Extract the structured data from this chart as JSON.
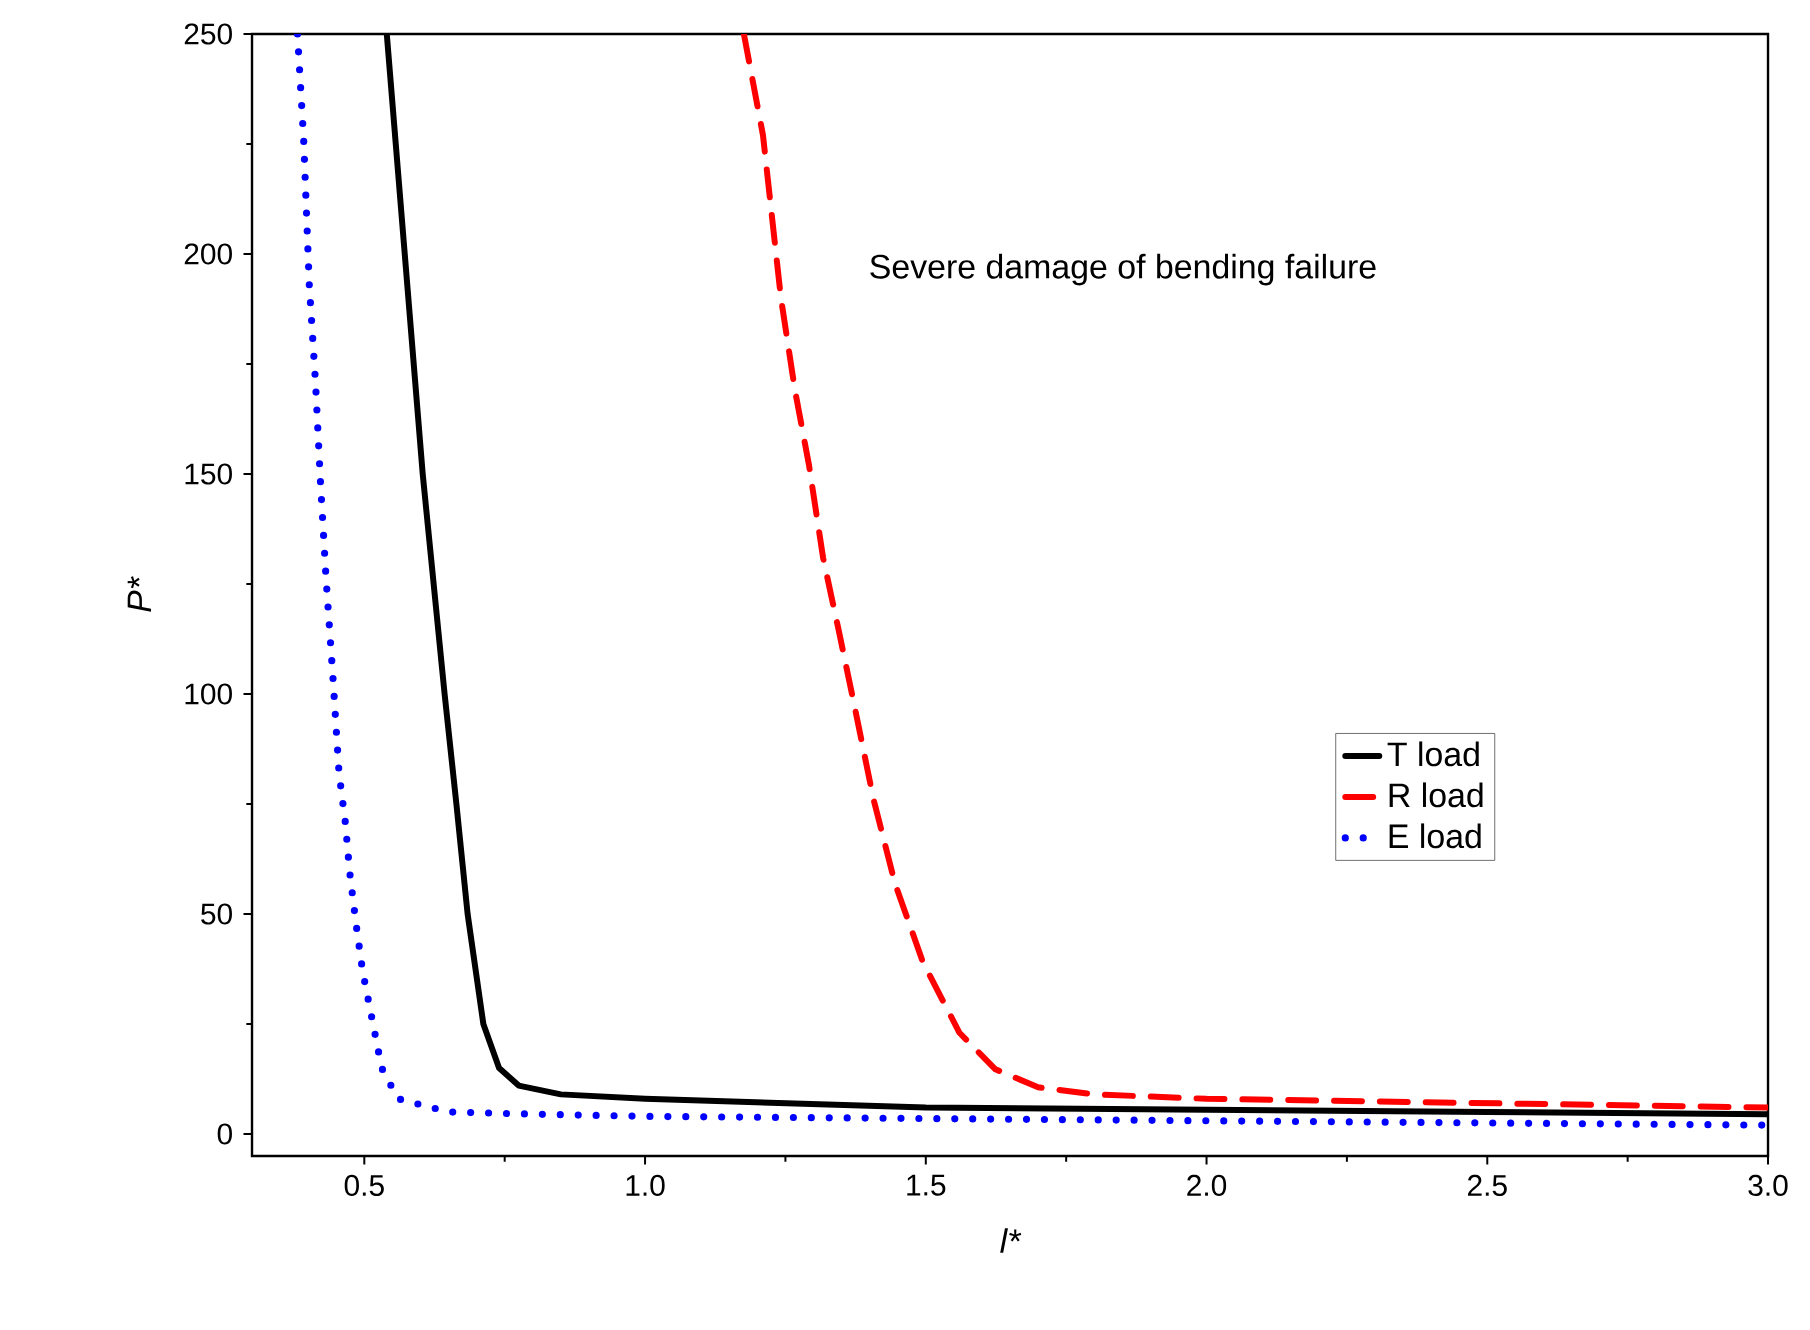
{
  "chart_data": {
    "type": "line",
    "xlabel": "l*",
    "ylabel": "P*",
    "annotations": [
      "Severe damage of bending failure"
    ],
    "xlim": [
      0.3,
      3.0
    ],
    "xticks": [
      {
        "value": 0.5,
        "label": "0.5"
      },
      {
        "value": 1.0,
        "label": "1.0"
      },
      {
        "value": 1.5,
        "label": "1.5"
      },
      {
        "value": 2.0,
        "label": "2.0"
      },
      {
        "value": 2.5,
        "label": "2.5"
      },
      {
        "value": 3.0,
        "label": "3.0"
      }
    ],
    "ylim": [
      -5,
      250
    ],
    "yticks": [
      0,
      50,
      100,
      150,
      200,
      250
    ],
    "grid": false,
    "legend": "right",
    "marker": "none",
    "series": [
      {
        "name": "T load",
        "color": "#000000",
        "line_style": "solid",
        "x": [
          0.54,
          0.572,
          0.604,
          0.643,
          0.664,
          0.684,
          0.712,
          0.74,
          0.775,
          0.85,
          1.0,
          1.25,
          1.5,
          2.0,
          2.5,
          3.0
        ],
        "values": [
          250,
          200,
          150,
          100,
          75,
          50,
          25,
          15,
          11,
          9,
          8,
          7,
          6,
          5.5,
          5,
          4.5
        ]
      },
      {
        "name": "R load",
        "color": "#ff0000",
        "line_style": "dashed",
        "x": [
          1.176,
          1.21,
          1.242,
          1.267,
          1.292,
          1.317,
          1.344,
          1.375,
          1.407,
          1.445,
          1.495,
          1.56,
          1.624,
          1.7,
          1.8,
          2.0,
          2.5,
          3.0
        ],
        "values": [
          250,
          227,
          190,
          169,
          152,
          131,
          115,
          96,
          76,
          57,
          39,
          23,
          14.7,
          10.6,
          9,
          8,
          7,
          6
        ]
      },
      {
        "name": "E load",
        "color": "#0000ff",
        "line_style": "dotted",
        "x": [
          0.381,
          0.392,
          0.402,
          0.413,
          0.422,
          0.432,
          0.444,
          0.455,
          0.466,
          0.474,
          0.485,
          0.497,
          0.514,
          0.531,
          0.56,
          0.65,
          0.8,
          1.0,
          1.5,
          2.0,
          2.5,
          3.0
        ],
        "values": [
          250,
          226,
          193,
          171,
          148,
          126,
          104,
          82,
          71,
          59.5,
          48,
          37,
          26,
          15,
          8,
          5,
          4.5,
          4,
          3.5,
          3,
          2.5,
          2
        ]
      }
    ]
  }
}
